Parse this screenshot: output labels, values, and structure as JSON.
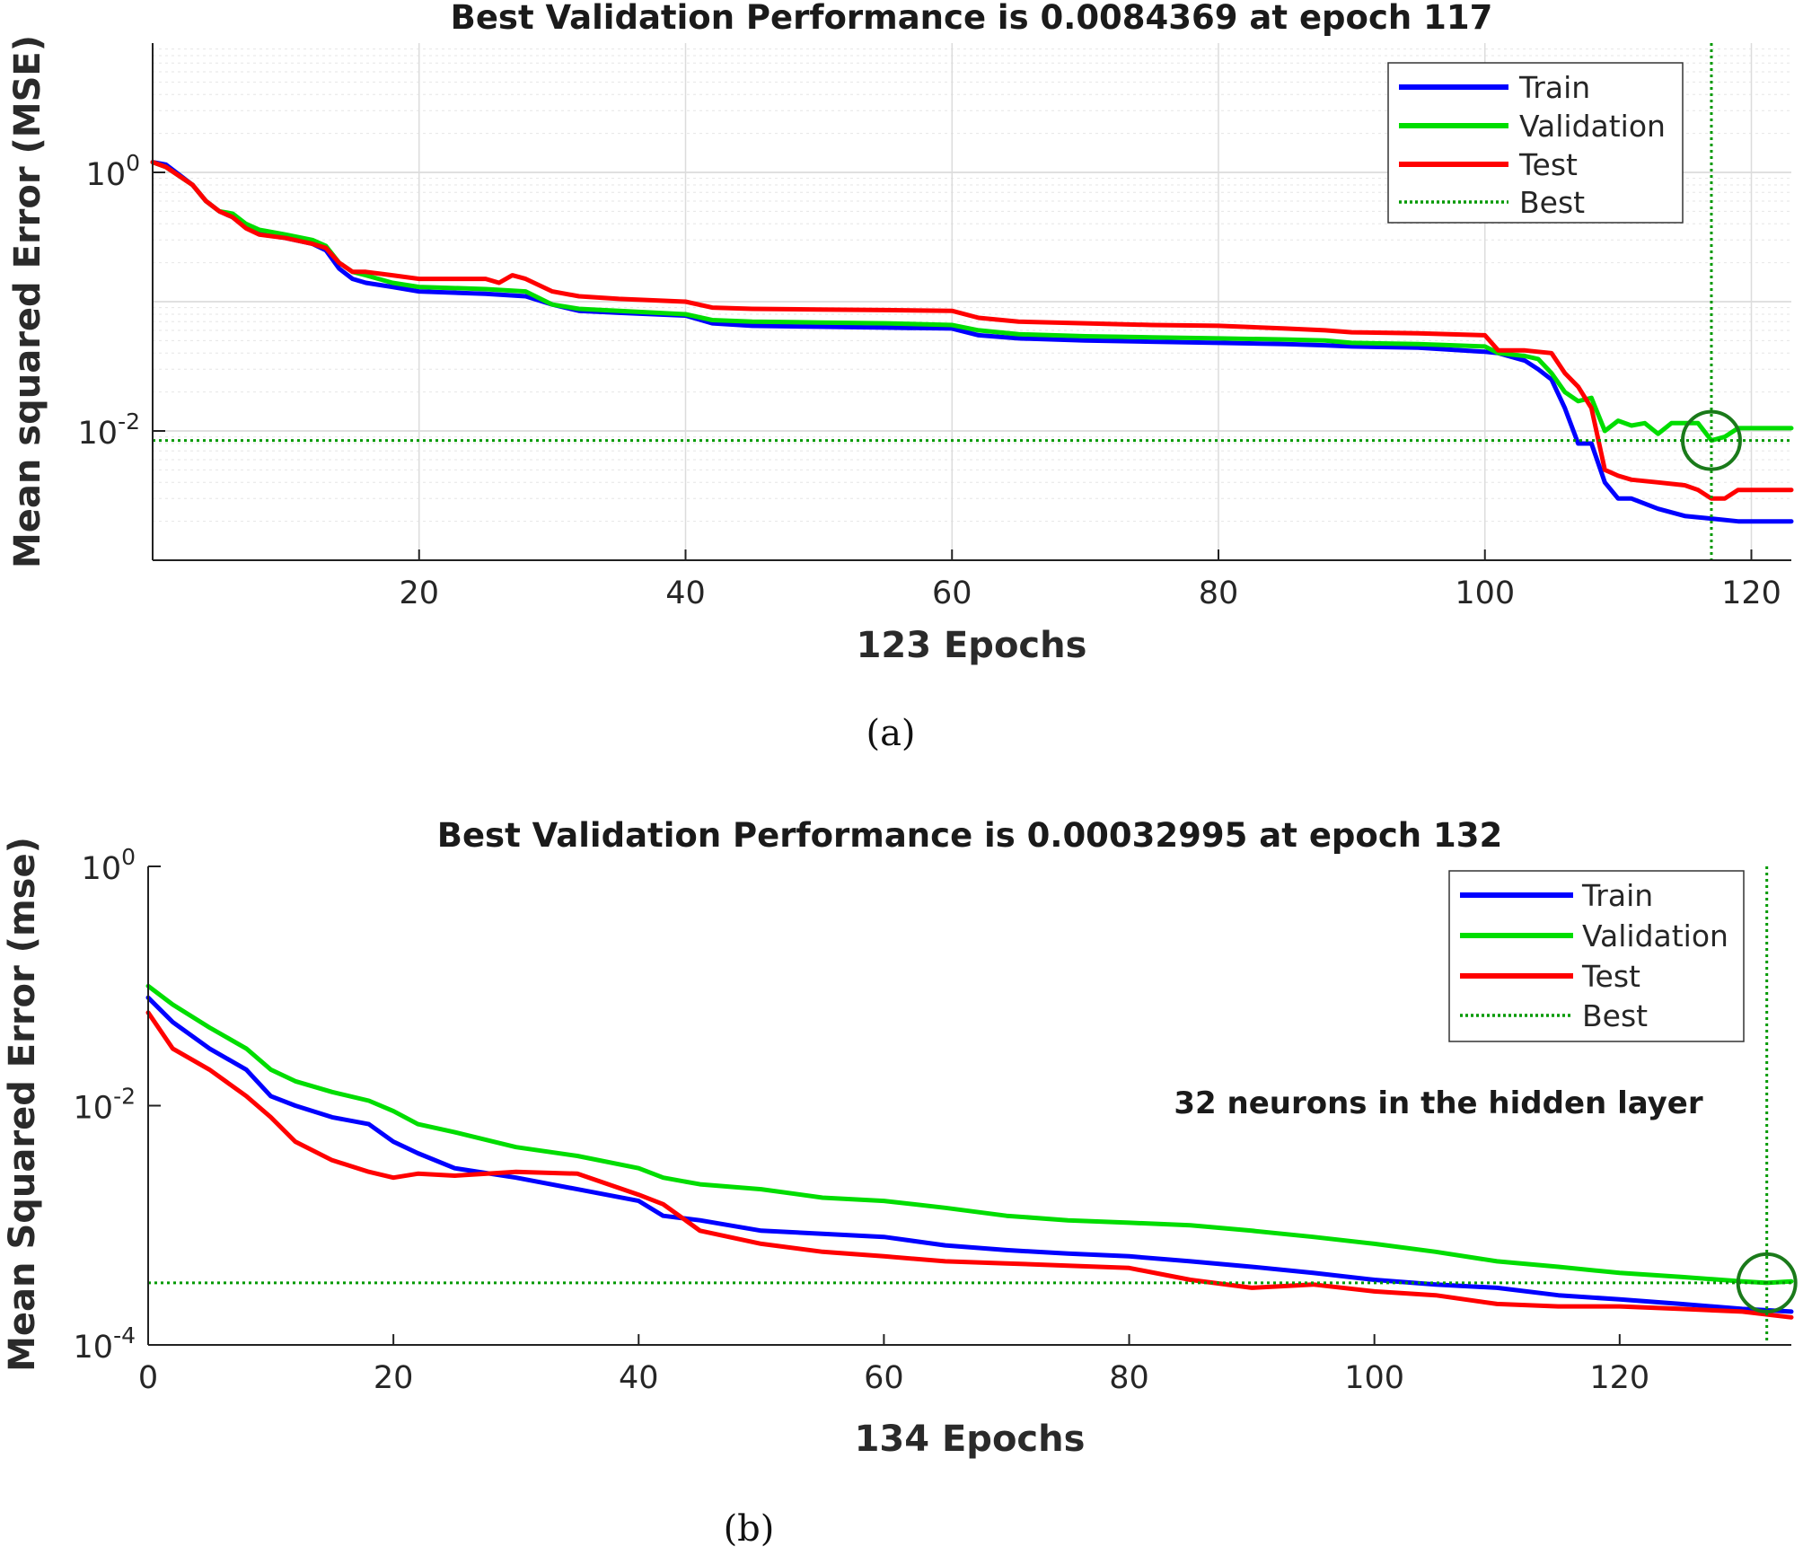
{
  "chart_data": [
    {
      "type": "line",
      "title": "Best Validation Performance is 0.0084369 at epoch 117",
      "xlabel": "123 Epochs",
      "ylabel": "Mean squared Error (MSE)",
      "yscale": "log",
      "xlim": [
        0,
        123
      ],
      "ylim": [
        0.001,
        10
      ],
      "xticks": [
        20,
        40,
        60,
        80,
        100,
        120
      ],
      "yticks": [
        {
          "base": "10",
          "exp": "0",
          "value": 1
        },
        {
          "base": "10",
          "exp": "-2",
          "value": 0.01
        }
      ],
      "grid": true,
      "minor_grid": true,
      "legend_position": "top-right",
      "caption": "(a)",
      "best": {
        "epoch": 117,
        "value": 0.0084369
      },
      "series": [
        {
          "name": "Train",
          "color": "#0000ff",
          "x": [
            0,
            1,
            3,
            4,
            5,
            6,
            7,
            8,
            10,
            12,
            13,
            14,
            15,
            16,
            18,
            20,
            25,
            28,
            30,
            32,
            35,
            40,
            42,
            45,
            50,
            55,
            60,
            62,
            65,
            70,
            75,
            80,
            85,
            88,
            90,
            95,
            100,
            101,
            103,
            104,
            105,
            106,
            107,
            108,
            109,
            110,
            111,
            113,
            115,
            117,
            119,
            121,
            123
          ],
          "y": [
            1.2,
            1.15,
            0.8,
            0.6,
            0.5,
            0.45,
            0.38,
            0.34,
            0.31,
            0.28,
            0.25,
            0.18,
            0.15,
            0.14,
            0.13,
            0.12,
            0.115,
            0.11,
            0.095,
            0.085,
            0.082,
            0.078,
            0.068,
            0.065,
            0.064,
            0.063,
            0.062,
            0.055,
            0.052,
            0.05,
            0.049,
            0.048,
            0.047,
            0.046,
            0.045,
            0.044,
            0.041,
            0.04,
            0.035,
            0.03,
            0.025,
            0.015,
            0.008,
            0.008,
            0.004,
            0.003,
            0.003,
            0.0025,
            0.0022,
            0.0021,
            0.002,
            0.002,
            0.002
          ]
        },
        {
          "name": "Validation",
          "color": "#00dd00",
          "x": [
            0,
            1,
            3,
            4,
            5,
            6,
            7,
            8,
            10,
            12,
            13,
            14,
            15,
            16,
            18,
            20,
            25,
            28,
            30,
            32,
            35,
            40,
            42,
            45,
            50,
            55,
            60,
            62,
            65,
            70,
            75,
            80,
            85,
            88,
            90,
            95,
            100,
            101,
            103,
            104,
            105,
            106,
            107,
            108,
            109,
            110,
            111,
            112,
            113,
            114,
            116,
            117,
            118,
            119,
            121,
            123
          ],
          "y": [
            1.2,
            1.1,
            0.8,
            0.6,
            0.5,
            0.48,
            0.4,
            0.36,
            0.33,
            0.3,
            0.27,
            0.2,
            0.17,
            0.16,
            0.14,
            0.13,
            0.125,
            0.12,
            0.095,
            0.088,
            0.085,
            0.08,
            0.072,
            0.07,
            0.069,
            0.068,
            0.066,
            0.06,
            0.056,
            0.054,
            0.053,
            0.052,
            0.051,
            0.05,
            0.048,
            0.047,
            0.045,
            0.04,
            0.038,
            0.036,
            0.028,
            0.02,
            0.017,
            0.018,
            0.01,
            0.012,
            0.011,
            0.0115,
            0.0095,
            0.0115,
            0.0115,
            0.0084369,
            0.009,
            0.0105,
            0.0105,
            0.0105
          ]
        },
        {
          "name": "Test",
          "color": "#ff0000",
          "x": [
            0,
            1,
            3,
            4,
            5,
            6,
            7,
            8,
            10,
            12,
            13,
            14,
            15,
            16,
            18,
            20,
            25,
            26,
            27,
            28,
            30,
            32,
            35,
            40,
            42,
            45,
            50,
            55,
            60,
            62,
            65,
            70,
            75,
            80,
            85,
            88,
            90,
            95,
            100,
            101,
            103,
            104,
            105,
            106,
            107,
            108,
            109,
            110,
            111,
            113,
            115,
            116,
            117,
            118,
            119,
            121,
            123
          ],
          "y": [
            1.2,
            1.1,
            0.8,
            0.6,
            0.5,
            0.45,
            0.37,
            0.33,
            0.31,
            0.28,
            0.26,
            0.2,
            0.17,
            0.17,
            0.16,
            0.15,
            0.15,
            0.14,
            0.16,
            0.15,
            0.12,
            0.11,
            0.105,
            0.1,
            0.09,
            0.088,
            0.087,
            0.086,
            0.085,
            0.075,
            0.07,
            0.068,
            0.066,
            0.065,
            0.062,
            0.06,
            0.058,
            0.057,
            0.055,
            0.042,
            0.042,
            0.041,
            0.04,
            0.028,
            0.022,
            0.015,
            0.005,
            0.0045,
            0.0042,
            0.004,
            0.0038,
            0.0035,
            0.003,
            0.003,
            0.0035,
            0.0035,
            0.0035
          ]
        },
        {
          "name": "Best",
          "color": "#009900",
          "style": "dotted"
        }
      ]
    },
    {
      "type": "line",
      "title": "Best Validation Performance is 0.00032995 at epoch 132",
      "xlabel": "134 Epochs",
      "ylabel": "Mean Squared Error  (mse)",
      "yscale": "log",
      "xlim": [
        0,
        134
      ],
      "ylim": [
        0.0001,
        1
      ],
      "xticks": [
        0,
        20,
        40,
        60,
        80,
        100,
        120
      ],
      "yticks": [
        {
          "base": "10",
          "exp": "0",
          "value": 1
        },
        {
          "base": "10",
          "exp": "-2",
          "value": 0.01
        },
        {
          "base": "10",
          "exp": "-4",
          "value": 0.0001
        }
      ],
      "grid": false,
      "legend_position": "top-right",
      "caption": "(b)",
      "annotation": "32 neurons in the hidden layer",
      "best": {
        "epoch": 132,
        "value": 0.00032995
      },
      "series": [
        {
          "name": "Train",
          "color": "#0000ff",
          "x": [
            0,
            2,
            5,
            8,
            10,
            12,
            15,
            18,
            20,
            22,
            25,
            30,
            35,
            40,
            42,
            45,
            50,
            55,
            60,
            65,
            70,
            75,
            80,
            85,
            90,
            95,
            100,
            105,
            110,
            115,
            120,
            125,
            130,
            134
          ],
          "y": [
            0.08,
            0.05,
            0.03,
            0.02,
            0.012,
            0.01,
            0.008,
            0.007,
            0.005,
            0.004,
            0.003,
            0.0025,
            0.002,
            0.0016,
            0.0012,
            0.0011,
            0.0009,
            0.00085,
            0.0008,
            0.00068,
            0.00062,
            0.00058,
            0.00055,
            0.0005,
            0.00045,
            0.0004,
            0.00035,
            0.00032,
            0.0003,
            0.00026,
            0.00024,
            0.00022,
            0.0002,
            0.00019
          ]
        },
        {
          "name": "Validation",
          "color": "#00dd00",
          "x": [
            0,
            2,
            5,
            8,
            10,
            12,
            15,
            18,
            20,
            22,
            25,
            30,
            35,
            40,
            42,
            45,
            50,
            55,
            60,
            65,
            70,
            75,
            80,
            85,
            90,
            95,
            100,
            105,
            110,
            115,
            120,
            125,
            130,
            132,
            134
          ],
          "y": [
            0.1,
            0.07,
            0.045,
            0.03,
            0.02,
            0.016,
            0.013,
            0.011,
            0.009,
            0.007,
            0.006,
            0.0045,
            0.0038,
            0.003,
            0.0025,
            0.0022,
            0.002,
            0.0017,
            0.0016,
            0.0014,
            0.0012,
            0.0011,
            0.00105,
            0.001,
            0.0009,
            0.0008,
            0.0007,
            0.0006,
            0.0005,
            0.00045,
            0.0004,
            0.00037,
            0.00034,
            0.00032995,
            0.00034
          ]
        },
        {
          "name": "Test",
          "color": "#ff0000",
          "x": [
            0,
            2,
            5,
            8,
            10,
            12,
            15,
            18,
            20,
            22,
            25,
            30,
            35,
            40,
            42,
            45,
            50,
            55,
            60,
            65,
            70,
            75,
            80,
            85,
            90,
            95,
            100,
            105,
            110,
            115,
            120,
            125,
            130,
            134
          ],
          "y": [
            0.06,
            0.03,
            0.02,
            0.012,
            0.008,
            0.005,
            0.0035,
            0.0028,
            0.0025,
            0.0027,
            0.0026,
            0.0028,
            0.0027,
            0.0018,
            0.0015,
            0.0009,
            0.0007,
            0.0006,
            0.00055,
            0.0005,
            0.00048,
            0.00046,
            0.00044,
            0.00035,
            0.0003,
            0.00032,
            0.00028,
            0.00026,
            0.00022,
            0.00021,
            0.00021,
            0.0002,
            0.00019,
            0.00017
          ]
        },
        {
          "name": "Best",
          "color": "#009900",
          "style": "dotted"
        }
      ]
    }
  ]
}
